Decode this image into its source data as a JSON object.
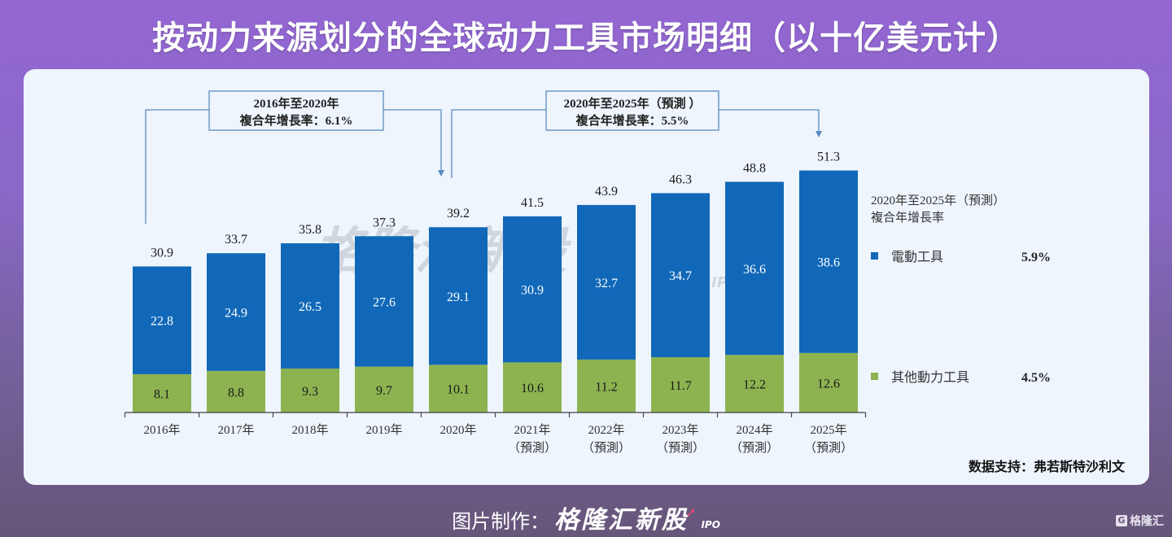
{
  "title": "按动力来源划分的全球动力工具市场明细（以十亿美元计）",
  "source": "数据支持：弗若斯特沙利文",
  "footer": {
    "prefix": "图片制作：",
    "brand": "格隆汇新股",
    "brand_suffix": "IPO"
  },
  "watermark": {
    "text": "格隆汇新股",
    "suffix": "IPO"
  },
  "corner_logo": {
    "glyph": "G",
    "text": "格隆汇"
  },
  "colors": {
    "electric": "#1168b8",
    "other": "#8db351",
    "annotation": "#5a8cc0"
  },
  "chart_data": {
    "type": "bar",
    "stacked": true,
    "title": "按动力来源划分的全球动力工具市场明细（以十亿美元计）",
    "xlabel": "",
    "ylabel": "",
    "ylim": [
      0,
      55
    ],
    "grid": false,
    "categories": [
      {
        "year": "2016年",
        "note": ""
      },
      {
        "year": "2017年",
        "note": ""
      },
      {
        "year": "2018年",
        "note": ""
      },
      {
        "year": "2019年",
        "note": ""
      },
      {
        "year": "2020年",
        "note": ""
      },
      {
        "year": "2021年",
        "note": "（預測）"
      },
      {
        "year": "2022年",
        "note": "（預測）"
      },
      {
        "year": "2023年",
        "note": "（預測）"
      },
      {
        "year": "2024年",
        "note": "（預測）"
      },
      {
        "year": "2025年",
        "note": "（預測）"
      }
    ],
    "series": [
      {
        "name": "其他動力工具",
        "key": "other",
        "values": [
          8.1,
          8.8,
          9.3,
          9.7,
          10.1,
          10.6,
          11.2,
          11.7,
          12.2,
          12.6
        ],
        "cagr": "4.5%"
      },
      {
        "name": "電動工具",
        "key": "electric",
        "values": [
          22.8,
          24.9,
          26.5,
          27.6,
          29.1,
          30.9,
          32.7,
          34.7,
          36.6,
          38.6
        ],
        "cagr": "5.9%"
      }
    ],
    "totals": [
      30.9,
      33.7,
      35.8,
      37.3,
      39.2,
      41.5,
      43.9,
      46.3,
      48.8,
      51.3
    ],
    "legend": {
      "placement": "right",
      "title_line1": "2020年至2025年（預測）",
      "title_line2": "複合年增長率",
      "items": [
        {
          "label": "電動工具",
          "value": "5.9%",
          "key": "electric"
        },
        {
          "label": "其他動力工具",
          "value": "4.5%",
          "key": "other"
        }
      ]
    },
    "annotations": [
      {
        "line1": "2016年至2020年",
        "line2": "複合年增長率：6.1%",
        "from": 0,
        "to": 4
      },
      {
        "line1": "2020年至2025年（預測 ）",
        "line2": "複合年增長率：5.5%",
        "from": 4,
        "to": 9
      }
    ]
  }
}
